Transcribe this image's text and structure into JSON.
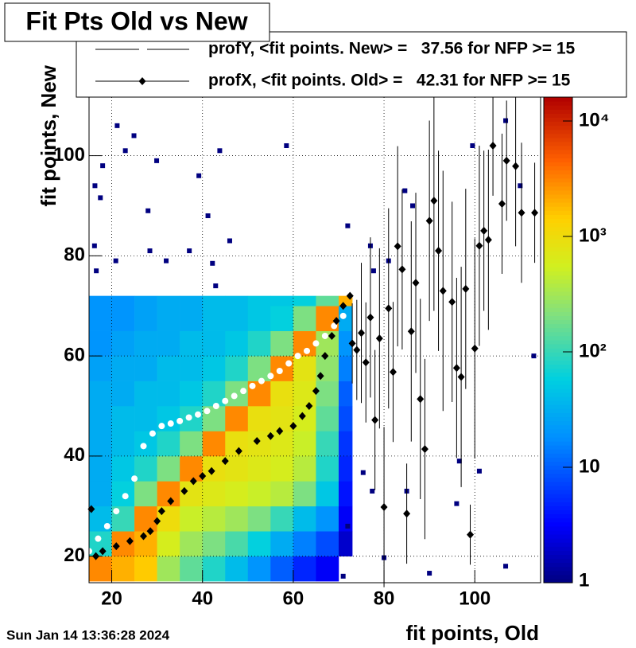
{
  "chart_data": {
    "type": "heatmap",
    "title": "Fit Pts Old vs New",
    "xlabel": "fit points, Old",
    "ylabel": "fit points, New",
    "timestamp": "Sun Jan 14 13:36:28 2024",
    "xlim": [
      15,
      114.5
    ],
    "ylim": [
      14.7,
      111.7
    ],
    "xticks": [
      20,
      40,
      60,
      80,
      100
    ],
    "yticks": [
      20,
      40,
      60,
      80,
      100
    ],
    "grid": true,
    "zlim": [
      1,
      16100
    ],
    "zlog": true,
    "zticks": [
      1,
      10,
      {
        "value": 100,
        "label": "10²"
      },
      {
        "value": 1000,
        "label": "10³"
      },
      {
        "value": 10000,
        "label": "10⁴"
      }
    ],
    "heatmap": {
      "xbins": [
        15,
        20,
        25,
        30,
        35,
        40,
        45,
        50,
        55,
        60,
        65,
        70,
        73
      ],
      "ybins": [
        15,
        20,
        25,
        30,
        35,
        40,
        45,
        50,
        55,
        60,
        65,
        70,
        72
      ],
      "counts": [
        [
          3000,
          2000,
          1500,
          300,
          150,
          80,
          40,
          20,
          10,
          5,
          3,
          0
        ],
        [
          80,
          3000,
          2000,
          600,
          300,
          200,
          120,
          60,
          30,
          15,
          8,
          2
        ],
        [
          40,
          100,
          3000,
          1000,
          500,
          400,
          300,
          200,
          100,
          40,
          20,
          3
        ],
        [
          30,
          60,
          200,
          3000,
          800,
          700,
          600,
          500,
          400,
          200,
          50,
          4
        ],
        [
          30,
          50,
          80,
          200,
          3000,
          900,
          800,
          700,
          600,
          400,
          80,
          5
        ],
        [
          30,
          40,
          50,
          80,
          200,
          3000,
          900,
          800,
          700,
          500,
          100,
          6
        ],
        [
          30,
          40,
          40,
          50,
          80,
          200,
          3000,
          900,
          800,
          600,
          150,
          8
        ],
        [
          30,
          30,
          40,
          40,
          50,
          80,
          200,
          3000,
          900,
          700,
          200,
          10
        ],
        [
          25,
          30,
          30,
          40,
          40,
          50,
          80,
          200,
          3000,
          800,
          250,
          15
        ],
        [
          20,
          25,
          30,
          30,
          40,
          40,
          50,
          80,
          200,
          3000,
          300,
          20
        ],
        [
          20,
          20,
          25,
          30,
          30,
          40,
          40,
          50,
          60,
          200,
          3000,
          30
        ],
        [
          20,
          20,
          25,
          30,
          30,
          40,
          40,
          50,
          50,
          60,
          150,
          2000
        ]
      ]
    },
    "sparse": {
      "x": [
        21.2,
        24.9,
        23,
        18,
        29.9,
        43.8,
        58.5,
        16.3,
        17.5,
        28,
        39.2,
        41.2,
        46,
        37.1,
        28.4,
        16.2,
        20.9,
        32,
        42.2,
        42.9,
        16.6,
        72,
        77,
        77.7,
        81,
        84.6,
        86.3,
        99.5,
        106.8,
        110,
        101,
        96.6,
        77.4,
        75.4,
        72,
        80,
        85,
        96,
        113,
        106.8,
        71,
        90
      ],
      "y": [
        106,
        104,
        101,
        98,
        99,
        101,
        102,
        94,
        91.6,
        89,
        96,
        88,
        83,
        81,
        81,
        82,
        79,
        79,
        78.5,
        74,
        77,
        86,
        82,
        77,
        79,
        93,
        90,
        102,
        107,
        94,
        37,
        39,
        33,
        36.7,
        26,
        19.7,
        33,
        30.5,
        60,
        18,
        16,
        16.6
      ],
      "count": 1
    },
    "series": [
      {
        "name": "profY, <fit points. New> =   37.56 for NFP >= 15",
        "color": "#ffffff",
        "marker": "circle",
        "x": [
          15,
          17,
          19,
          21,
          23,
          25,
          27,
          29,
          31,
          33,
          35,
          37,
          39,
          41,
          43,
          45,
          47,
          49,
          51,
          53,
          55,
          57,
          59,
          61,
          63,
          65,
          67,
          69,
          71
        ],
        "y": [
          21,
          23.5,
          26,
          29,
          32,
          35.5,
          42,
          44.5,
          46,
          46.5,
          47,
          47.7,
          48.3,
          49,
          50,
          51,
          52,
          53,
          54,
          55,
          56,
          57,
          58.5,
          60,
          61,
          62.5,
          64,
          66,
          68
        ]
      },
      {
        "name": "profX, <fit points. Old> =   42.31 for NFP >= 15",
        "color": "#000000",
        "marker": "diamond",
        "x": [
          16.5,
          18,
          21,
          24,
          27,
          28.5,
          30,
          31,
          33,
          36,
          38,
          40,
          42,
          45,
          48,
          52,
          55,
          57,
          60,
          62,
          63.5,
          65,
          66,
          67,
          68.5,
          69.5,
          71,
          72.5,
          15.5,
          73,
          74,
          75,
          76,
          77,
          78,
          79,
          80,
          81,
          82,
          83,
          84,
          85,
          86,
          87,
          88,
          89,
          90,
          91,
          92,
          93,
          95,
          96,
          97,
          98,
          99,
          100,
          101,
          102,
          103,
          104,
          106,
          107,
          109,
          110.3,
          113.2
        ],
        "y": [
          20,
          21,
          22,
          23,
          24,
          25,
          27,
          29,
          31,
          33,
          35,
          36,
          37,
          39,
          41,
          43,
          44,
          45,
          46,
          48,
          50,
          53,
          56,
          60,
          64,
          67,
          70,
          72,
          29.4,
          62.5,
          61.2,
          64.6,
          58.7,
          67.7,
          47.2,
          63.5,
          29.8,
          69.5,
          56.8,
          81.9,
          77.3,
          28.5,
          64.9,
          74.6,
          51.4,
          41.4,
          87,
          91,
          81,
          73,
          70.8,
          57.6,
          55.8,
          73.4,
          24.3,
          61.5,
          82,
          85,
          83.2,
          102,
          90.4,
          99,
          97.9,
          88.6,
          88.6
        ],
        "errors": [
          0,
          0,
          0,
          0,
          0,
          0,
          0,
          0,
          0,
          0,
          0,
          0,
          0,
          0,
          0,
          0,
          0,
          0,
          0,
          0,
          0,
          0,
          0,
          0,
          0,
          0,
          0,
          0,
          0,
          8,
          10,
          14,
          12,
          16,
          14,
          18,
          16,
          20,
          14,
          20,
          16,
          10,
          22,
          18,
          20,
          18,
          20,
          22,
          20,
          24,
          20,
          18,
          22,
          20,
          6,
          22,
          20,
          16,
          18,
          10,
          14,
          12,
          16,
          14,
          10
        ]
      }
    ]
  }
}
